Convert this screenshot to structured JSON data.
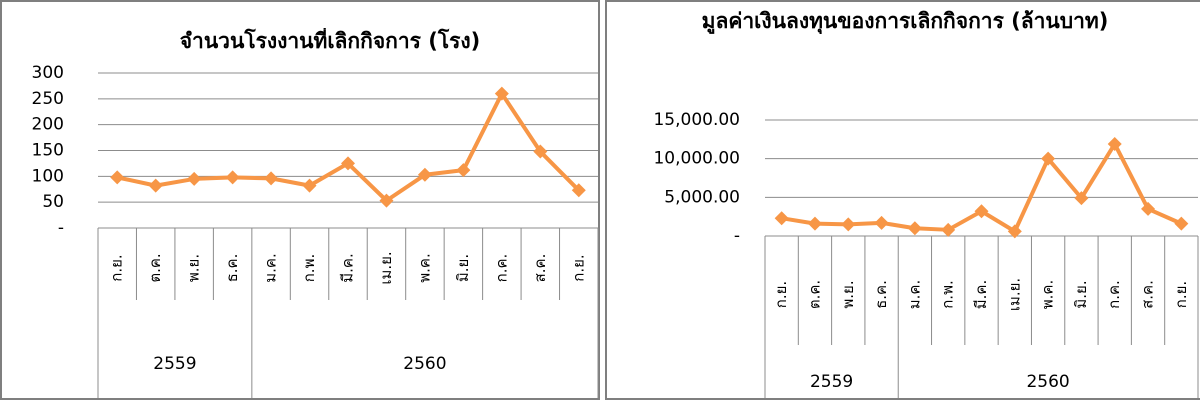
{
  "chart_data": [
    {
      "type": "line",
      "title": "จำนวนโรงงานที่เลิกกิจการ (โรง)",
      "categories": [
        "ก.ย.",
        "ต.ค.",
        "พ.ย.",
        "ธ.ค.",
        "ม.ค.",
        "ก.พ.",
        "มี.ค.",
        "เม.ย.",
        "พ.ค.",
        "มิ.ย.",
        "ก.ค.",
        "ส.ค.",
        "ก.ย."
      ],
      "years": [
        "2559",
        "2559",
        "2559",
        "2559",
        "2560",
        "2560",
        "2560",
        "2560",
        "2560",
        "2560",
        "2560",
        "2560",
        "2560"
      ],
      "series": [
        {
          "name": "จำนวนโรงงานที่เลิกกิจการ",
          "color": "#f79646",
          "values": [
            98,
            82,
            95,
            98,
            96,
            82,
            125,
            53,
            103,
            112,
            260,
            148,
            73
          ]
        }
      ],
      "ylim": [
        0,
        300
      ],
      "yticks": [
        {
          "value": 0,
          "label": "-"
        },
        50,
        100,
        150,
        200,
        250,
        300
      ],
      "grid": true
    },
    {
      "type": "line",
      "title": "มูลค่าเงินลงทุนของการเลิกกิจการ (ล้านบาท)",
      "categories": [
        "ก.ย.",
        "ต.ค.",
        "พ.ย.",
        "ธ.ค.",
        "ม.ค.",
        "ก.พ.",
        "มี.ค.",
        "เม.ย.",
        "พ.ค.",
        "มิ.ย.",
        "ก.ค.",
        "ส.ค.",
        "ก.ย."
      ],
      "years": [
        "2559",
        "2559",
        "2559",
        "2559",
        "2560",
        "2560",
        "2560",
        "2560",
        "2560",
        "2560",
        "2560",
        "2560",
        "2560"
      ],
      "series": [
        {
          "name": "มูลค่าเงินลงทุน",
          "color": "#f79646",
          "values": [
            2300,
            1600,
            1500,
            1700,
            1000,
            800,
            3200,
            600,
            10000,
            4900,
            11900,
            3500,
            1600
          ]
        }
      ],
      "ylim": [
        0,
        15000
      ],
      "yticks": [
        {
          "value": 0,
          "label": "-"
        },
        {
          "value": 5000,
          "label": "5,000.00"
        },
        {
          "value": 10000,
          "label": "10,000.00"
        },
        {
          "value": 15000,
          "label": "15,000.00"
        }
      ],
      "grid": true
    }
  ]
}
